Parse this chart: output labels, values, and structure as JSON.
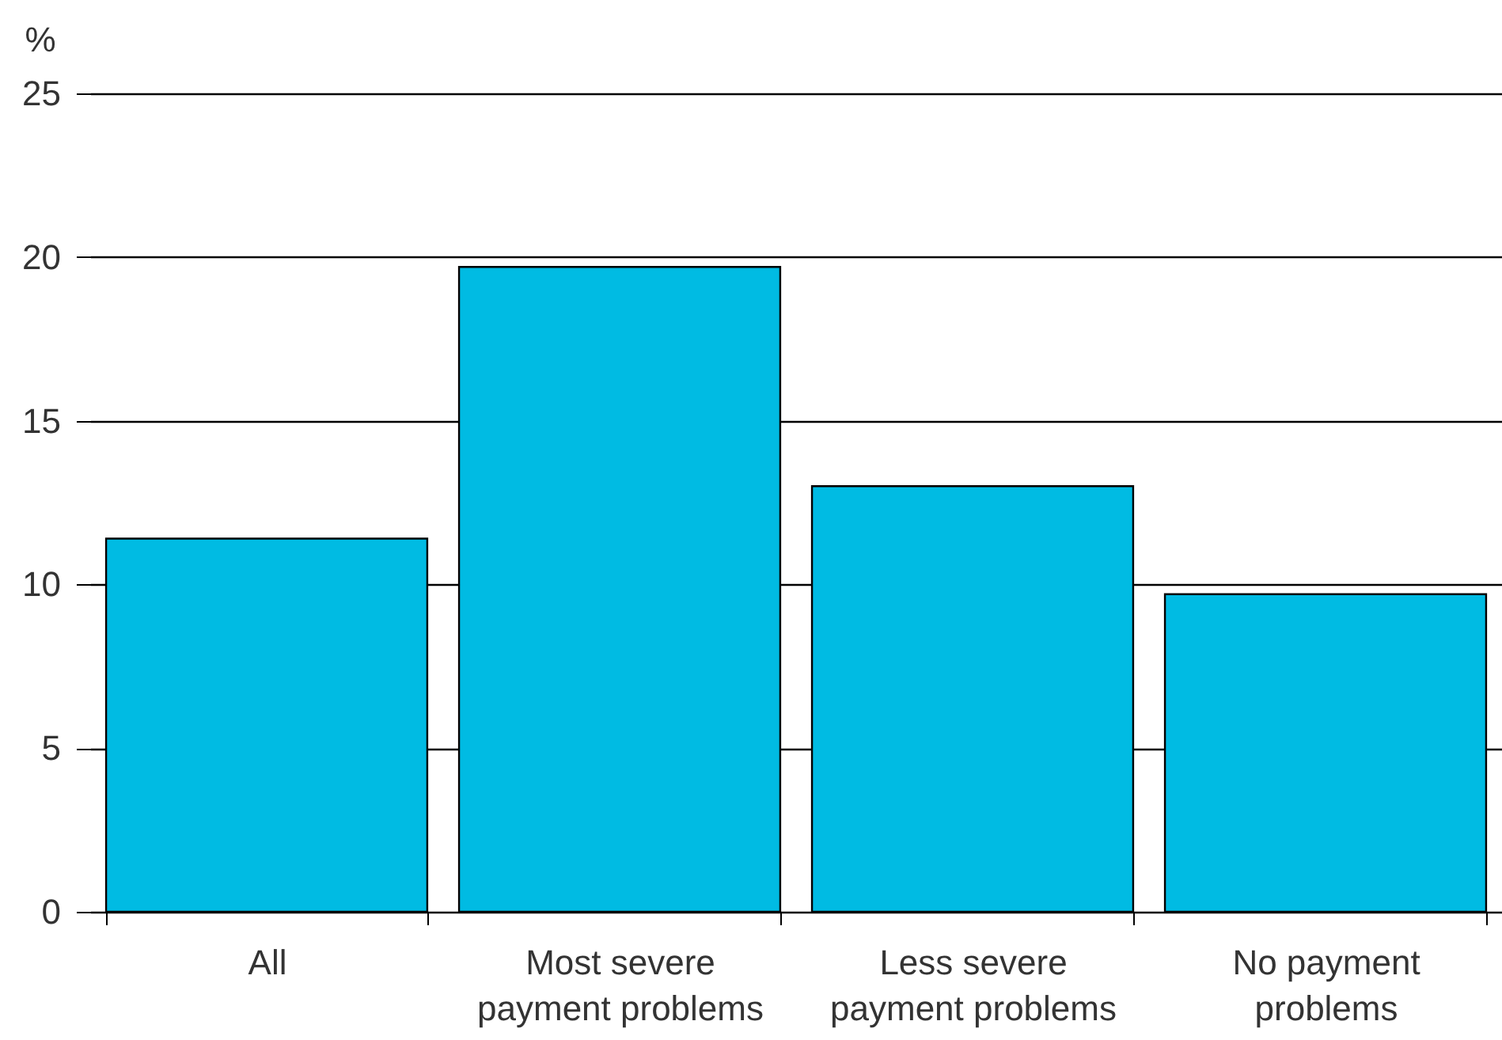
{
  "chart_data": {
    "type": "bar",
    "ylabel": "%",
    "categories": [
      "All",
      "Most severe payment problems",
      "Less severe payment problems",
      "No payment problems"
    ],
    "values": [
      11.4,
      19.7,
      13.0,
      9.7
    ],
    "color": "#00bbe3",
    "ylim": [
      0,
      25
    ],
    "yticks": [
      0,
      5,
      10,
      15,
      20,
      25
    ],
    "grid": "y"
  }
}
